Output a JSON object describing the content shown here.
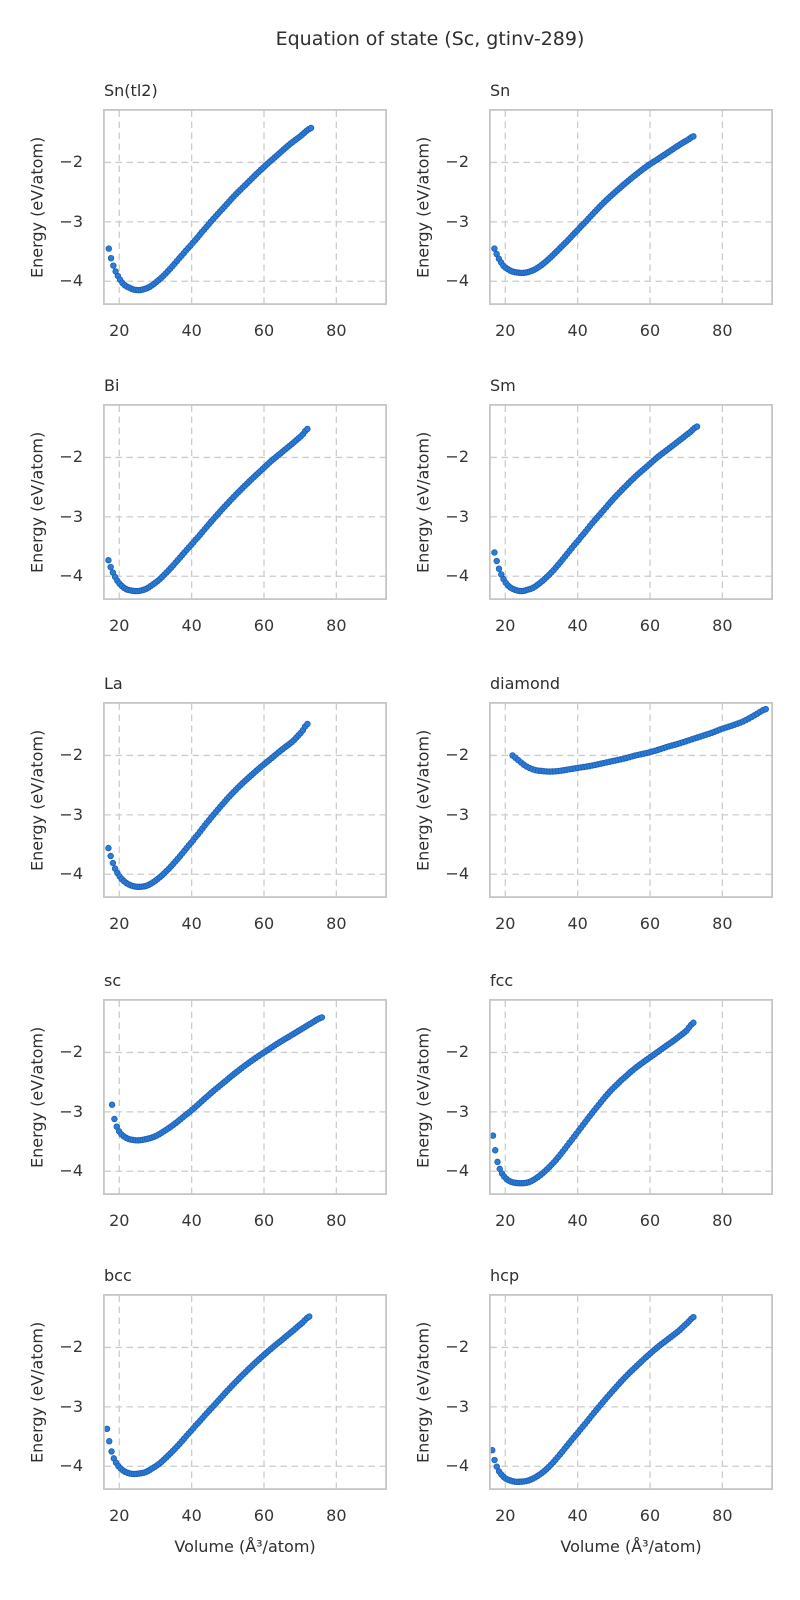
{
  "title": "Equation of state (Sc, gtinv-289)",
  "style": {
    "background": "#ffffff",
    "marker_color": "#2d7dd8",
    "marker_edge_color": "#1a5fb4",
    "grid_color": "#cccccc",
    "spine_color": "#c6c6c6",
    "text_color": "#2e2e2e"
  },
  "chart_data": {
    "type": "scatter",
    "suptitle": "Equation of state (Sc, gtinv-289)",
    "xlabel": "Volume (Å³/atom)",
    "ylabel": "Energy (eV/atom)",
    "xlim": [
      15.5,
      94
    ],
    "ylim": [
      -4.4,
      -1.1
    ],
    "xticks": [
      20,
      40,
      60,
      80
    ],
    "yticks": [
      -2,
      -3,
      -4
    ],
    "grid": true,
    "grid_style": "dashed",
    "legend": "none",
    "n_markers": 90,
    "layout": "5 rows x 2 cols",
    "subplots": [
      {
        "title": "Sn(tl2)",
        "points": [
          [
            17.1,
            -3.45
          ],
          [
            17.8,
            -3.63
          ],
          [
            18.6,
            -3.78
          ],
          [
            19.5,
            -3.9
          ],
          [
            20.5,
            -4.0
          ],
          [
            21.6,
            -4.07
          ],
          [
            22.8,
            -4.11
          ],
          [
            24,
            -4.14
          ],
          [
            25.5,
            -4.15
          ],
          [
            27,
            -4.13
          ],
          [
            28.5,
            -4.09
          ],
          [
            30.5,
            -4.0
          ],
          [
            32.5,
            -3.89
          ],
          [
            34.5,
            -3.76
          ],
          [
            36.5,
            -3.62
          ],
          [
            38.5,
            -3.48
          ],
          [
            40.5,
            -3.34
          ],
          [
            43,
            -3.16
          ],
          [
            46,
            -2.95
          ],
          [
            49,
            -2.75
          ],
          [
            52,
            -2.55
          ],
          [
            55,
            -2.37
          ],
          [
            58,
            -2.19
          ],
          [
            61,
            -2.02
          ],
          [
            64,
            -1.86
          ],
          [
            67,
            -1.7
          ],
          [
            70,
            -1.56
          ],
          [
            73,
            -1.42
          ]
        ]
      },
      {
        "title": "Sn",
        "points": [
          [
            17,
            -3.45
          ],
          [
            17.8,
            -3.57
          ],
          [
            18.6,
            -3.66
          ],
          [
            19.5,
            -3.74
          ],
          [
            20.5,
            -3.79
          ],
          [
            21.7,
            -3.83
          ],
          [
            23,
            -3.85
          ],
          [
            24.5,
            -3.86
          ],
          [
            26,
            -3.85
          ],
          [
            27.5,
            -3.82
          ],
          [
            29,
            -3.77
          ],
          [
            31,
            -3.68
          ],
          [
            33,
            -3.57
          ],
          [
            35,
            -3.45
          ],
          [
            37,
            -3.33
          ],
          [
            39,
            -3.2
          ],
          [
            41,
            -3.07
          ],
          [
            44,
            -2.88
          ],
          [
            47,
            -2.69
          ],
          [
            50,
            -2.52
          ],
          [
            53,
            -2.36
          ],
          [
            56,
            -2.21
          ],
          [
            59,
            -2.07
          ],
          [
            62,
            -1.95
          ],
          [
            65,
            -1.83
          ],
          [
            68,
            -1.71
          ],
          [
            70.5,
            -1.62
          ],
          [
            72,
            -1.56
          ]
        ]
      },
      {
        "title": "Bi",
        "points": [
          [
            17,
            -3.73
          ],
          [
            17.7,
            -3.86
          ],
          [
            18.4,
            -3.96
          ],
          [
            19.2,
            -4.05
          ],
          [
            20,
            -4.12
          ],
          [
            21,
            -4.18
          ],
          [
            22,
            -4.22
          ],
          [
            23.3,
            -4.24
          ],
          [
            24.7,
            -4.25
          ],
          [
            26,
            -4.24
          ],
          [
            27.5,
            -4.21
          ],
          [
            29,
            -4.15
          ],
          [
            31,
            -4.06
          ],
          [
            33,
            -3.94
          ],
          [
            35,
            -3.81
          ],
          [
            37,
            -3.67
          ],
          [
            39,
            -3.53
          ],
          [
            41,
            -3.39
          ],
          [
            44,
            -3.18
          ],
          [
            47,
            -2.97
          ],
          [
            50,
            -2.77
          ],
          [
            53,
            -2.58
          ],
          [
            56,
            -2.4
          ],
          [
            59,
            -2.23
          ],
          [
            62,
            -2.06
          ],
          [
            65,
            -1.91
          ],
          [
            68,
            -1.76
          ],
          [
            70.5,
            -1.63
          ],
          [
            72,
            -1.52
          ]
        ]
      },
      {
        "title": "Sm",
        "points": [
          [
            17,
            -3.6
          ],
          [
            17.7,
            -3.76
          ],
          [
            18.4,
            -3.9
          ],
          [
            19.2,
            -4.01
          ],
          [
            20,
            -4.1
          ],
          [
            21,
            -4.17
          ],
          [
            22,
            -4.21
          ],
          [
            23.3,
            -4.24
          ],
          [
            24.7,
            -4.25
          ],
          [
            26,
            -4.23
          ],
          [
            27.5,
            -4.2
          ],
          [
            29,
            -4.14
          ],
          [
            31,
            -4.04
          ],
          [
            33,
            -3.92
          ],
          [
            35,
            -3.78
          ],
          [
            37,
            -3.63
          ],
          [
            39,
            -3.48
          ],
          [
            41,
            -3.33
          ],
          [
            44,
            -3.11
          ],
          [
            47,
            -2.9
          ],
          [
            50,
            -2.69
          ],
          [
            53,
            -2.5
          ],
          [
            56,
            -2.32
          ],
          [
            59,
            -2.16
          ],
          [
            62,
            -2.0
          ],
          [
            65,
            -1.86
          ],
          [
            68,
            -1.72
          ],
          [
            71,
            -1.58
          ],
          [
            73,
            -1.48
          ]
        ]
      },
      {
        "title": "La",
        "points": [
          [
            17,
            -3.56
          ],
          [
            17.7,
            -3.71
          ],
          [
            18.4,
            -3.84
          ],
          [
            19.2,
            -3.95
          ],
          [
            20,
            -4.03
          ],
          [
            21,
            -4.1
          ],
          [
            22,
            -4.15
          ],
          [
            23.3,
            -4.19
          ],
          [
            24.7,
            -4.21
          ],
          [
            26.2,
            -4.21
          ],
          [
            27.7,
            -4.19
          ],
          [
            29.2,
            -4.14
          ],
          [
            31,
            -4.06
          ],
          [
            33,
            -3.95
          ],
          [
            35,
            -3.82
          ],
          [
            37,
            -3.68
          ],
          [
            39,
            -3.53
          ],
          [
            41,
            -3.38
          ],
          [
            44,
            -3.15
          ],
          [
            47,
            -2.93
          ],
          [
            50,
            -2.72
          ],
          [
            53,
            -2.53
          ],
          [
            56,
            -2.36
          ],
          [
            59,
            -2.2
          ],
          [
            62,
            -2.05
          ],
          [
            65,
            -1.9
          ],
          [
            68,
            -1.76
          ],
          [
            70.5,
            -1.6
          ],
          [
            72,
            -1.47
          ]
        ]
      },
      {
        "title": "diamond",
        "points": [
          [
            22,
            -2.0
          ],
          [
            23,
            -2.05
          ],
          [
            24,
            -2.1
          ],
          [
            25,
            -2.15
          ],
          [
            26,
            -2.19
          ],
          [
            27,
            -2.22
          ],
          [
            28.5,
            -2.25
          ],
          [
            30,
            -2.26
          ],
          [
            31.5,
            -2.27
          ],
          [
            33,
            -2.27
          ],
          [
            35,
            -2.26
          ],
          [
            37,
            -2.24
          ],
          [
            39,
            -2.22
          ],
          [
            41,
            -2.2
          ],
          [
            44,
            -2.17
          ],
          [
            47,
            -2.13
          ],
          [
            50,
            -2.09
          ],
          [
            53,
            -2.05
          ],
          [
            56,
            -2.0
          ],
          [
            59,
            -1.96
          ],
          [
            62,
            -1.91
          ],
          [
            65,
            -1.85
          ],
          [
            68,
            -1.8
          ],
          [
            71,
            -1.74
          ],
          [
            74,
            -1.68
          ],
          [
            77,
            -1.62
          ],
          [
            80,
            -1.55
          ],
          [
            83,
            -1.49
          ],
          [
            86,
            -1.42
          ],
          [
            89,
            -1.32
          ],
          [
            92,
            -1.22
          ]
        ]
      },
      {
        "title": "sc",
        "points": [
          [
            18,
            -2.88
          ],
          [
            18.4,
            -3.05
          ],
          [
            18.9,
            -3.18
          ],
          [
            19.5,
            -3.28
          ],
          [
            20.3,
            -3.36
          ],
          [
            21.2,
            -3.41
          ],
          [
            22.3,
            -3.45
          ],
          [
            23.5,
            -3.47
          ],
          [
            25,
            -3.48
          ],
          [
            26.5,
            -3.47
          ],
          [
            28,
            -3.45
          ],
          [
            30,
            -3.41
          ],
          [
            32,
            -3.34
          ],
          [
            34,
            -3.26
          ],
          [
            36,
            -3.17
          ],
          [
            38,
            -3.07
          ],
          [
            40,
            -2.97
          ],
          [
            43,
            -2.81
          ],
          [
            46,
            -2.65
          ],
          [
            49,
            -2.5
          ],
          [
            52,
            -2.35
          ],
          [
            55,
            -2.21
          ],
          [
            58,
            -2.08
          ],
          [
            61,
            -1.96
          ],
          [
            64,
            -1.84
          ],
          [
            67,
            -1.73
          ],
          [
            70,
            -1.62
          ],
          [
            73,
            -1.51
          ],
          [
            76,
            -1.41
          ]
        ]
      },
      {
        "title": "fcc",
        "points": [
          [
            16.6,
            -3.4
          ],
          [
            17.1,
            -3.6
          ],
          [
            17.6,
            -3.78
          ],
          [
            18.2,
            -3.92
          ],
          [
            19,
            -4.03
          ],
          [
            20,
            -4.11
          ],
          [
            21,
            -4.16
          ],
          [
            22.3,
            -4.19
          ],
          [
            23.7,
            -4.2
          ],
          [
            25.2,
            -4.2
          ],
          [
            26.7,
            -4.18
          ],
          [
            28.2,
            -4.13
          ],
          [
            30,
            -4.05
          ],
          [
            32,
            -3.94
          ],
          [
            34,
            -3.81
          ],
          [
            36,
            -3.66
          ],
          [
            38,
            -3.5
          ],
          [
            40,
            -3.34
          ],
          [
            42,
            -3.18
          ],
          [
            44,
            -3.02
          ],
          [
            46,
            -2.87
          ],
          [
            48,
            -2.72
          ],
          [
            50,
            -2.59
          ],
          [
            52,
            -2.47
          ],
          [
            55,
            -2.31
          ],
          [
            58,
            -2.17
          ],
          [
            61,
            -2.04
          ],
          [
            64,
            -1.91
          ],
          [
            67,
            -1.78
          ],
          [
            70,
            -1.64
          ],
          [
            72,
            -1.5
          ]
        ]
      },
      {
        "title": "bcc",
        "points": [
          [
            16.6,
            -3.37
          ],
          [
            17.2,
            -3.57
          ],
          [
            17.8,
            -3.74
          ],
          [
            18.5,
            -3.87
          ],
          [
            19.4,
            -3.97
          ],
          [
            20.4,
            -4.04
          ],
          [
            21.5,
            -4.09
          ],
          [
            22.8,
            -4.12
          ],
          [
            24.2,
            -4.13
          ],
          [
            25.7,
            -4.12
          ],
          [
            27.2,
            -4.1
          ],
          [
            29,
            -4.04
          ],
          [
            31,
            -3.96
          ],
          [
            33,
            -3.85
          ],
          [
            35,
            -3.73
          ],
          [
            37,
            -3.6
          ],
          [
            39,
            -3.46
          ],
          [
            41,
            -3.32
          ],
          [
            44,
            -3.12
          ],
          [
            47,
            -2.92
          ],
          [
            50,
            -2.72
          ],
          [
            53,
            -2.53
          ],
          [
            56,
            -2.35
          ],
          [
            59,
            -2.18
          ],
          [
            62,
            -2.02
          ],
          [
            65,
            -1.87
          ],
          [
            68,
            -1.72
          ],
          [
            70.5,
            -1.59
          ],
          [
            72.5,
            -1.48
          ]
        ]
      },
      {
        "title": "hcp",
        "points": [
          [
            16.4,
            -3.73
          ],
          [
            17,
            -3.89
          ],
          [
            17.6,
            -4.0
          ],
          [
            18.3,
            -4.09
          ],
          [
            19.2,
            -4.16
          ],
          [
            20.2,
            -4.21
          ],
          [
            21.4,
            -4.24
          ],
          [
            22.7,
            -4.26
          ],
          [
            24.2,
            -4.26
          ],
          [
            25.7,
            -4.25
          ],
          [
            27.2,
            -4.22
          ],
          [
            29,
            -4.16
          ],
          [
            31,
            -4.07
          ],
          [
            33,
            -3.95
          ],
          [
            35,
            -3.81
          ],
          [
            37,
            -3.66
          ],
          [
            39,
            -3.51
          ],
          [
            41,
            -3.36
          ],
          [
            44,
            -3.14
          ],
          [
            47,
            -2.92
          ],
          [
            50,
            -2.71
          ],
          [
            53,
            -2.51
          ],
          [
            56,
            -2.33
          ],
          [
            59,
            -2.16
          ],
          [
            62,
            -2.0
          ],
          [
            65,
            -1.86
          ],
          [
            68,
            -1.72
          ],
          [
            70.5,
            -1.58
          ],
          [
            72,
            -1.49
          ]
        ]
      }
    ]
  }
}
